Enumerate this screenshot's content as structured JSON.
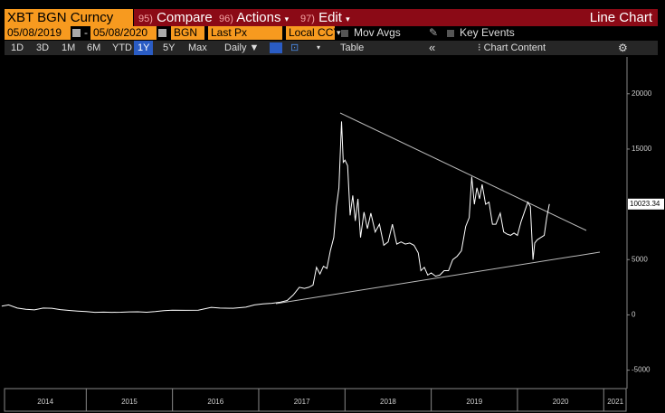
{
  "toolbar": {
    "ticker": "XBT BGN Curncy",
    "menus": [
      {
        "code": "95)",
        "label": "Compare"
      },
      {
        "code": "96)",
        "label": "Actions"
      },
      {
        "code": "97)",
        "label": "Edit"
      }
    ],
    "view": "Line Chart"
  },
  "settings": {
    "start_date": "05/08/2019",
    "separator": "-",
    "end_date": "05/08/2020",
    "source": "BGN",
    "field": "Last Px",
    "currency": "Local CCY",
    "options": [
      "Mov Avgs",
      "Key Events"
    ]
  },
  "periods": {
    "buttons": [
      "1D",
      "3D",
      "1M",
      "6M",
      "YTD",
      "1Y",
      "5Y",
      "Max"
    ],
    "selected": "1Y",
    "frequency": "Daily",
    "table": "Table",
    "collapse": "«",
    "content": "Chart Content"
  },
  "chart_data": {
    "type": "line",
    "xlim": [
      2014,
      2021.27
    ],
    "xticks": [
      2014,
      2015,
      2016,
      2017,
      2018,
      2019,
      2020,
      2021
    ],
    "ylim": [
      -6667,
      23333
    ],
    "yticks": [
      -5000,
      0,
      5000,
      15000,
      20000
    ],
    "series": [
      {
        "name": "XBT BGN Curncy",
        "color": "#ffffff",
        "x": [
          2014.02,
          2014.1,
          2014.2,
          2014.3,
          2014.4,
          2014.5,
          2014.6,
          2014.7,
          2014.8,
          2014.9,
          2015.0,
          2015.1,
          2015.2,
          2015.3,
          2015.4,
          2015.5,
          2015.6,
          2015.7,
          2015.8,
          2015.9,
          2016.0,
          2016.15,
          2016.3,
          2016.45,
          2016.55,
          2016.7,
          2016.85,
          2016.95,
          2017.05,
          2017.15,
          2017.25,
          2017.33,
          2017.4,
          2017.47,
          2017.53,
          2017.58,
          2017.63,
          2017.67,
          2017.71,
          2017.75,
          2017.79,
          2017.83,
          2017.87,
          2017.9,
          2017.93,
          2017.96,
          2017.98,
          2018.0,
          2018.03,
          2018.06,
          2018.09,
          2018.12,
          2018.15,
          2018.18,
          2018.22,
          2018.26,
          2018.3,
          2018.35,
          2018.4,
          2018.45,
          2018.5,
          2018.55,
          2018.6,
          2018.65,
          2018.7,
          2018.75,
          2018.8,
          2018.85,
          2018.88,
          2018.92,
          2018.96,
          2019.0,
          2019.05,
          2019.1,
          2019.15,
          2019.2,
          2019.25,
          2019.3,
          2019.35,
          2019.4,
          2019.44,
          2019.47,
          2019.5,
          2019.53,
          2019.56,
          2019.59,
          2019.63,
          2019.67,
          2019.71,
          2019.75,
          2019.8,
          2019.84,
          2019.88,
          2019.92,
          2019.96,
          2020.0,
          2020.04,
          2020.08,
          2020.12,
          2020.15,
          2020.18,
          2020.2,
          2020.23,
          2020.27,
          2020.31,
          2020.34,
          2020.37
        ],
        "values": [
          800,
          900,
          620,
          500,
          450,
          620,
          600,
          480,
          400,
          350,
          300,
          230,
          250,
          230,
          240,
          270,
          280,
          240,
          300,
          380,
          430,
          410,
          420,
          680,
          620,
          600,
          700,
          900,
          1000,
          1050,
          1150,
          1300,
          1800,
          2500,
          2400,
          2500,
          2700,
          4300,
          3700,
          4400,
          4200,
          5800,
          7000,
          9800,
          11500,
          17500,
          13800,
          14000,
          13500,
          9000,
          10800,
          8500,
          10500,
          7000,
          9300,
          7800,
          9200,
          7500,
          8200,
          6300,
          6600,
          8200,
          6400,
          6600,
          6400,
          6500,
          6300,
          5600,
          4000,
          4300,
          3600,
          3800,
          3500,
          3600,
          4000,
          4000,
          5000,
          5300,
          5800,
          8000,
          8800,
          12500,
          10000,
          11500,
          10500,
          11800,
          10000,
          10200,
          8200,
          8200,
          9200,
          7500,
          7300,
          7200,
          7400,
          7200,
          8400,
          9300,
          10200,
          9800,
          5000,
          6500,
          6800,
          7000,
          7200,
          8800,
          10023.34
        ]
      }
    ]
  }
}
